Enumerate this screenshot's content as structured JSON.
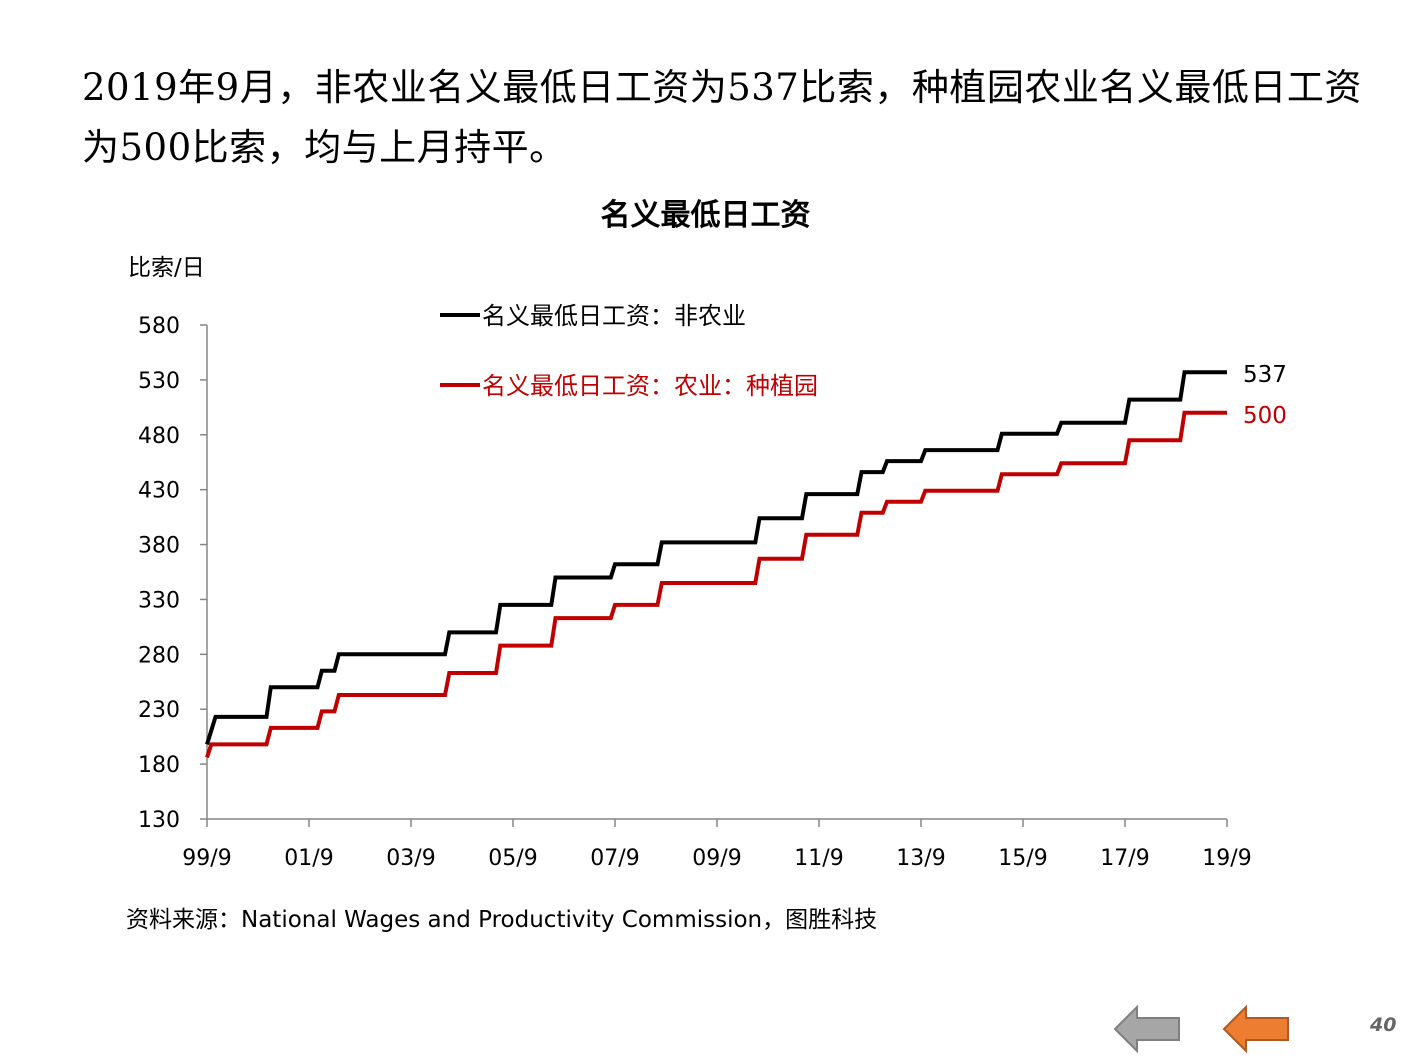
{
  "headline": "2019年9月，非农业名义最低日工资为537比索，种植园农业名义最低日工资为500比索，均与上月持平。",
  "source": "资料来源：National Wages and Productivity Commission，图胜科技",
  "page_number": "40",
  "nav": {
    "prev_icon": "arrow-left-icon",
    "next_icon": "arrow-left-icon",
    "prev_color": "#a6a6a6",
    "next_color": "#ed7d31"
  },
  "chart_data": {
    "type": "line",
    "title": "名义最低日工资",
    "ylabel": "比索/日",
    "ylim": [
      130,
      580
    ],
    "yticks": [
      130,
      180,
      230,
      280,
      330,
      380,
      430,
      480,
      530,
      580
    ],
    "xlim": [
      "1999-09",
      "2019-09"
    ],
    "xticks": [
      "99/9",
      "01/9",
      "03/9",
      "05/9",
      "07/9",
      "09/9",
      "11/9",
      "13/9",
      "15/9",
      "17/9",
      "19/9"
    ],
    "grid": false,
    "legend_placement": "top-left",
    "series": [
      {
        "name": "名义最低日工资：非农业",
        "color": "#000000",
        "end_label": "537",
        "points": [
          [
            "1999-09",
            198
          ],
          [
            "1999-11",
            223
          ],
          [
            "2000-11",
            223
          ],
          [
            "2000-12",
            250
          ],
          [
            "2001-11",
            250
          ],
          [
            "2001-12",
            265
          ],
          [
            "2002-03",
            265
          ],
          [
            "2002-04",
            280
          ],
          [
            "2004-05",
            280
          ],
          [
            "2004-06",
            300
          ],
          [
            "2005-05",
            300
          ],
          [
            "2005-06",
            325
          ],
          [
            "2006-06",
            325
          ],
          [
            "2006-07",
            350
          ],
          [
            "2007-08",
            350
          ],
          [
            "2007-09",
            362
          ],
          [
            "2008-07",
            362
          ],
          [
            "2008-08",
            382
          ],
          [
            "2010-06",
            382
          ],
          [
            "2010-07",
            404
          ],
          [
            "2011-05",
            404
          ],
          [
            "2011-06",
            426
          ],
          [
            "2012-06",
            426
          ],
          [
            "2012-07",
            446
          ],
          [
            "2012-12",
            446
          ],
          [
            "2013-01",
            456
          ],
          [
            "2013-09",
            456
          ],
          [
            "2013-10",
            466
          ],
          [
            "2015-03",
            466
          ],
          [
            "2015-04",
            481
          ],
          [
            "2016-05",
            481
          ],
          [
            "2016-06",
            491
          ],
          [
            "2017-09",
            491
          ],
          [
            "2017-10",
            512
          ],
          [
            "2018-10",
            512
          ],
          [
            "2018-11",
            537
          ],
          [
            "2019-09",
            537
          ]
        ]
      },
      {
        "name": "名义最低日工资：农业：种植园",
        "color": "#c00000",
        "end_label": "500",
        "points": [
          [
            "1999-09",
            186
          ],
          [
            "1999-10",
            198
          ],
          [
            "2000-11",
            198
          ],
          [
            "2000-12",
            213
          ],
          [
            "2001-11",
            213
          ],
          [
            "2001-12",
            228
          ],
          [
            "2002-03",
            228
          ],
          [
            "2002-04",
            243
          ],
          [
            "2004-05",
            243
          ],
          [
            "2004-06",
            263
          ],
          [
            "2005-05",
            263
          ],
          [
            "2005-06",
            288
          ],
          [
            "2006-06",
            288
          ],
          [
            "2006-07",
            313
          ],
          [
            "2007-08",
            313
          ],
          [
            "2007-09",
            325
          ],
          [
            "2008-07",
            325
          ],
          [
            "2008-08",
            345
          ],
          [
            "2010-06",
            345
          ],
          [
            "2010-07",
            367
          ],
          [
            "2011-05",
            367
          ],
          [
            "2011-06",
            389
          ],
          [
            "2012-06",
            389
          ],
          [
            "2012-07",
            409
          ],
          [
            "2012-12",
            409
          ],
          [
            "2013-01",
            419
          ],
          [
            "2013-09",
            419
          ],
          [
            "2013-10",
            429
          ],
          [
            "2015-03",
            429
          ],
          [
            "2015-04",
            444
          ],
          [
            "2016-05",
            444
          ],
          [
            "2016-06",
            454
          ],
          [
            "2017-09",
            454
          ],
          [
            "2017-10",
            475
          ],
          [
            "2018-10",
            475
          ],
          [
            "2018-11",
            500
          ],
          [
            "2019-09",
            500
          ]
        ]
      }
    ]
  }
}
